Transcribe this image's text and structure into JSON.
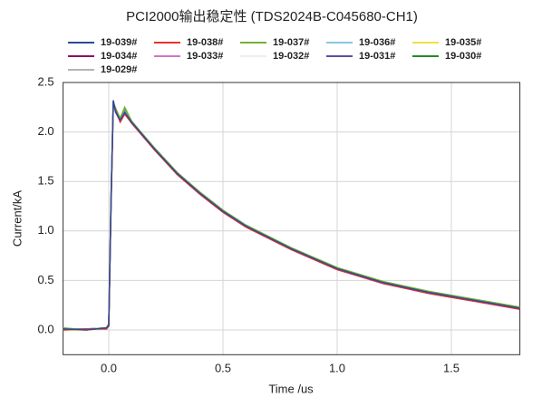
{
  "chart_data": {
    "type": "line",
    "title": "PCI2000输出稳定性 (TDS2024B-C045680-CH1)",
    "x_label": "Time /us",
    "y_label": "Current/kA",
    "x": [
      -0.2,
      -0.1,
      -0.01,
      0.0,
      0.01,
      0.02,
      0.03,
      0.05,
      0.07,
      0.1,
      0.2,
      0.3,
      0.4,
      0.5,
      0.6,
      0.8,
      1.0,
      1.2,
      1.4,
      1.5,
      1.6,
      1.8
    ],
    "xlim": [
      -0.2,
      1.8
    ],
    "ylim": [
      -0.25,
      2.5
    ],
    "xticks": [
      {
        "value": 0,
        "label": "0.0"
      },
      0.5,
      {
        "value": 1,
        "label": "1.0"
      },
      1.5
    ],
    "yticks": [
      {
        "value": 0,
        "label": "0.0"
      },
      0.5,
      {
        "value": 1,
        "label": "1.0"
      },
      1.5,
      {
        "value": 2,
        "label": "2.0"
      },
      2.5
    ],
    "grid": true,
    "series": [
      {
        "name": "19-039#",
        "color": "#2c4a9c",
        "values": [
          0.01,
          0.0,
          0.02,
          0.05,
          1.3,
          2.32,
          2.2,
          2.12,
          2.2,
          2.1,
          1.83,
          1.58,
          1.38,
          1.2,
          1.05,
          0.82,
          0.62,
          0.48,
          0.38,
          0.34,
          0.3,
          0.22
        ]
      },
      {
        "name": "19-038#",
        "color": "#e53232",
        "values": [
          0.0,
          0.01,
          0.01,
          0.04,
          1.25,
          2.28,
          2.22,
          2.1,
          2.18,
          2.09,
          1.82,
          1.57,
          1.37,
          1.19,
          1.04,
          0.81,
          0.61,
          0.47,
          0.37,
          0.33,
          0.29,
          0.21
        ]
      },
      {
        "name": "19-037#",
        "color": "#72b232",
        "values": [
          0.02,
          0.0,
          0.02,
          0.06,
          1.32,
          2.3,
          2.24,
          2.14,
          2.25,
          2.11,
          1.84,
          1.59,
          1.39,
          1.21,
          1.06,
          0.83,
          0.63,
          0.49,
          0.39,
          0.35,
          0.31,
          0.23
        ]
      },
      {
        "name": "19-036#",
        "color": "#86c8e0",
        "values": [
          0.01,
          0.01,
          0.02,
          0.05,
          1.28,
          2.29,
          2.21,
          2.12,
          2.21,
          2.1,
          1.83,
          1.58,
          1.38,
          1.2,
          1.05,
          0.82,
          0.62,
          0.48,
          0.38,
          0.34,
          0.3,
          0.22
        ]
      },
      {
        "name": "19-035#",
        "color": "#f0e046",
        "values": [
          0.0,
          0.0,
          0.01,
          0.05,
          1.3,
          2.27,
          2.2,
          2.13,
          2.2,
          2.1,
          1.84,
          1.59,
          1.39,
          1.21,
          1.06,
          0.83,
          0.63,
          0.49,
          0.39,
          0.35,
          0.31,
          0.23
        ]
      },
      {
        "name": "19-034#",
        "color": "#8c0a64",
        "values": [
          0.01,
          0.01,
          0.02,
          0.04,
          1.27,
          2.3,
          2.2,
          2.11,
          2.19,
          2.09,
          1.82,
          1.57,
          1.37,
          1.19,
          1.04,
          0.81,
          0.61,
          0.47,
          0.37,
          0.33,
          0.29,
          0.21
        ]
      },
      {
        "name": "19-033#",
        "color": "#d274c4",
        "values": [
          0.02,
          0.0,
          0.02,
          0.05,
          1.29,
          2.31,
          2.21,
          2.12,
          2.2,
          2.1,
          1.83,
          1.58,
          1.38,
          1.2,
          1.05,
          0.82,
          0.62,
          0.48,
          0.38,
          0.34,
          0.3,
          0.22
        ]
      },
      {
        "name": "19-032#",
        "color": "#eeeeee",
        "values": [
          0.01,
          0.0,
          0.02,
          0.05,
          1.3,
          2.3,
          2.2,
          2.12,
          2.2,
          2.1,
          1.83,
          1.58,
          1.38,
          1.2,
          1.05,
          0.82,
          0.62,
          0.48,
          0.38,
          0.34,
          0.3,
          0.22
        ]
      },
      {
        "name": "19-031#",
        "color": "#5a4ea2",
        "values": [
          0.0,
          0.01,
          0.01,
          0.05,
          1.31,
          2.3,
          2.21,
          2.13,
          2.21,
          2.11,
          1.83,
          1.58,
          1.38,
          1.2,
          1.05,
          0.82,
          0.62,
          0.48,
          0.38,
          0.34,
          0.3,
          0.22
        ]
      },
      {
        "name": "19-030#",
        "color": "#228a2a",
        "values": [
          0.01,
          0.0,
          0.02,
          0.06,
          1.33,
          2.29,
          2.23,
          2.13,
          2.23,
          2.1,
          1.84,
          1.59,
          1.39,
          1.21,
          1.05,
          0.82,
          0.62,
          0.48,
          0.38,
          0.34,
          0.3,
          0.23
        ]
      },
      {
        "name": "19-029#",
        "color": "#b4b4b4",
        "values": [
          0.01,
          0.01,
          0.02,
          0.05,
          1.28,
          2.29,
          2.2,
          2.12,
          2.2,
          2.1,
          1.83,
          1.58,
          1.38,
          1.2,
          1.05,
          0.82,
          0.62,
          0.48,
          0.38,
          0.34,
          0.3,
          0.22
        ]
      }
    ]
  }
}
